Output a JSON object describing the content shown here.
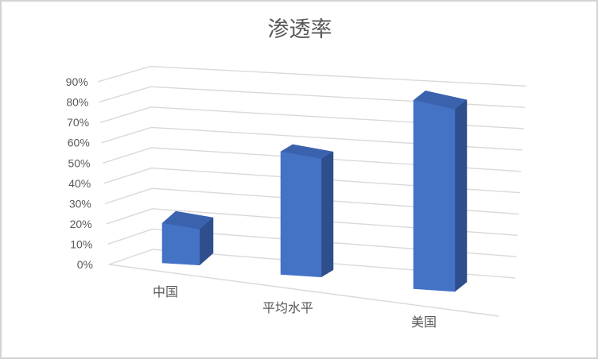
{
  "chart_data": {
    "type": "bar",
    "subtype": "3d-clustered-column",
    "title": "渗透率",
    "categories": [
      "中国",
      "平均水平",
      "美国"
    ],
    "values": [
      20,
      55,
      85
    ],
    "unit": "%",
    "series": [
      {
        "name": "渗透率",
        "values": [
          20,
          55,
          85
        ]
      }
    ],
    "xlabel": "",
    "ylabel": "",
    "ylim": [
      0,
      90
    ],
    "ytick_step": 10,
    "yticks": [
      "0%",
      "10%",
      "20%",
      "30%",
      "40%",
      "50%",
      "60%",
      "70%",
      "80%",
      "90%"
    ],
    "grid": true,
    "legend_position": "none",
    "colors": {
      "bar_front": "#4472C4",
      "bar_top": "#3B62AD",
      "bar_side": "#2E4E8C",
      "gridline": "#D9D9D9",
      "text": "#595959",
      "border": "#D4D2D2",
      "background": "#FFFFFF"
    }
  }
}
